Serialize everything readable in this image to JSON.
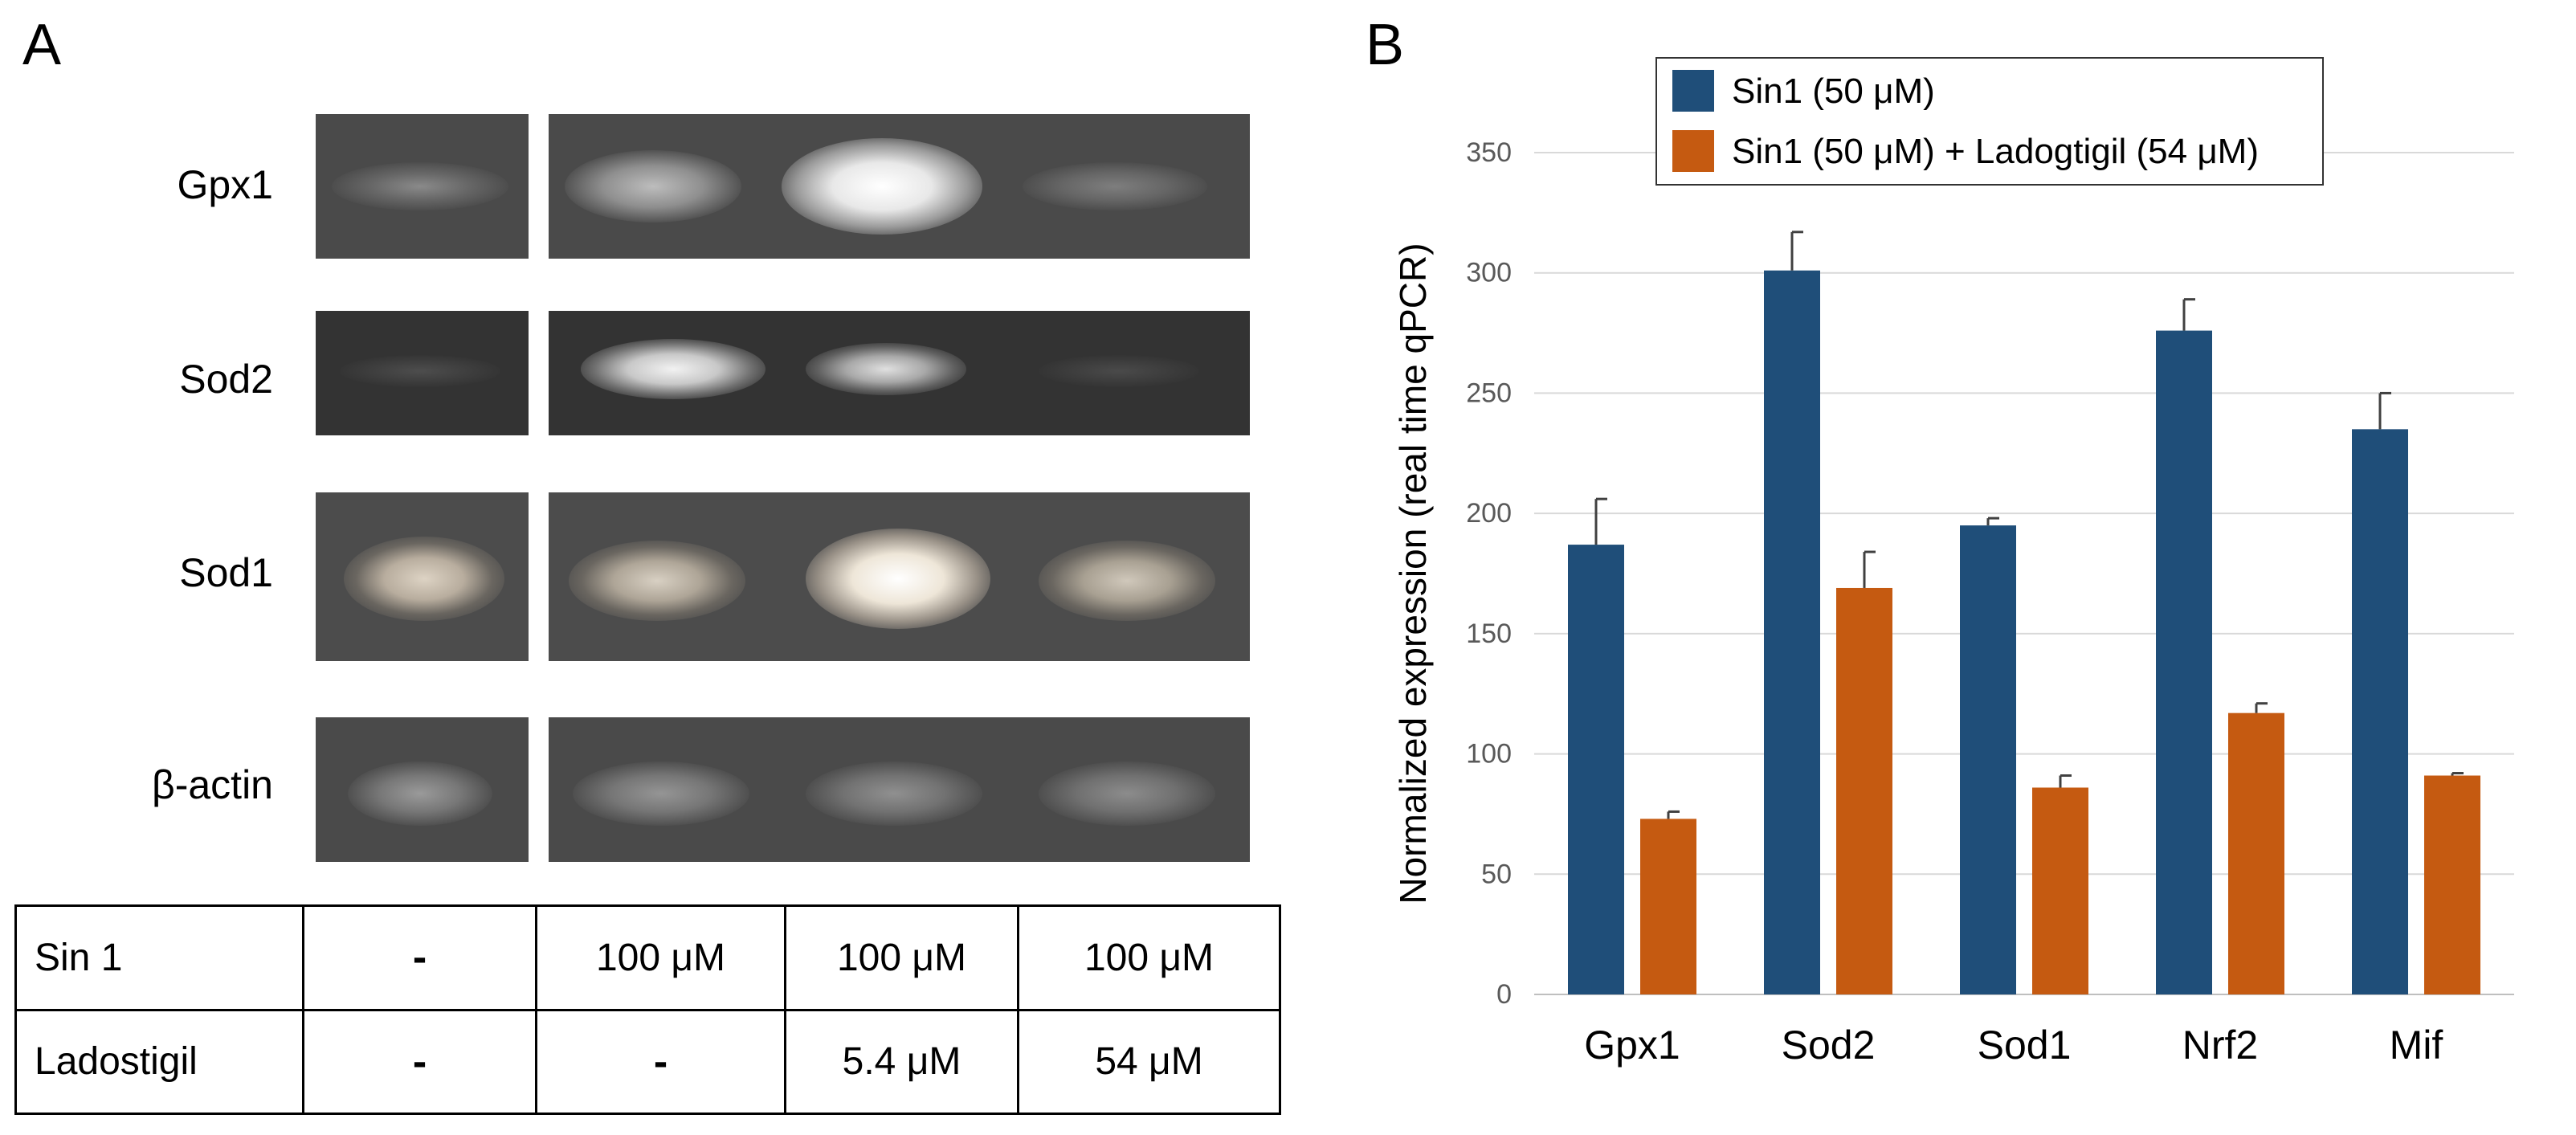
{
  "panels": {
    "a": "A",
    "b": "B"
  },
  "gel": {
    "rows": [
      {
        "label": "Gpx1"
      },
      {
        "label": "Sod2"
      },
      {
        "label": "Sod1"
      },
      {
        "label": "β-actin"
      }
    ]
  },
  "conditions": {
    "rows": [
      {
        "name": "Sin 1",
        "values": [
          "-",
          "100 μM",
          "100 μM",
          "100 μM"
        ]
      },
      {
        "name": "Ladostigil",
        "values": [
          "-",
          "-",
          "5.4 μM",
          "54 μM"
        ]
      }
    ]
  },
  "chart_data": {
    "type": "bar",
    "categories": [
      "Gpx1",
      "Sod2",
      "Sod1",
      "Nrf2",
      "Mif"
    ],
    "series": [
      {
        "name": "Sin1 (50 μM)",
        "color": "#1f4e79",
        "values": [
          187,
          301,
          195,
          276,
          235
        ],
        "errors": [
          19,
          16,
          3,
          13,
          15
        ]
      },
      {
        "name": "Sin1 (50 μM) + Ladogtigil (54 μM)",
        "color": "#c55a11",
        "values": [
          73,
          169,
          86,
          117,
          91
        ],
        "errors": [
          3,
          15,
          5,
          4,
          1
        ]
      }
    ],
    "ylabel": "Normalized expression (real time qPCR)",
    "xlabel": "",
    "ylim": [
      0,
      350
    ],
    "yticks": [
      0,
      50,
      100,
      150,
      200,
      250,
      300,
      350
    ],
    "grid": true,
    "legend": "top"
  }
}
